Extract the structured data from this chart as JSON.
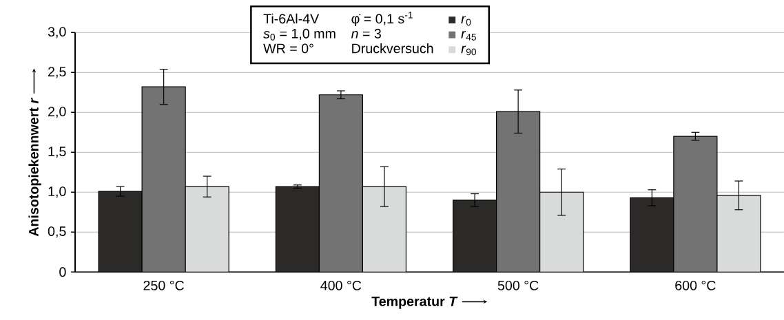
{
  "chart_data": {
    "type": "bar",
    "categories": [
      "250 °C",
      "400 °C",
      "500 °C",
      "600 °C"
    ],
    "xlabel": "Temperatur *T*",
    "ylabel": "Anisotopiekennwert *r*",
    "series": [
      {
        "name": "*r*$_{0}$",
        "color": "#2b2a28",
        "values": [
          1.01,
          1.07,
          0.9,
          0.93
        ],
        "errors": [
          0.06,
          0.02,
          0.08,
          0.1
        ]
      },
      {
        "name": "*r*$_{45}$",
        "color": "#737373",
        "values": [
          2.32,
          2.22,
          2.01,
          1.7
        ],
        "errors": [
          0.22,
          0.05,
          0.27,
          0.05
        ]
      },
      {
        "name": "*r*$_{90}$",
        "color": "#d9dbda",
        "values": [
          1.07,
          1.07,
          1.0,
          0.96
        ],
        "errors": [
          0.13,
          0.25,
          0.29,
          0.18
        ]
      }
    ],
    "annotations": [
      "Ti-6Al-4V",
      "*s*$_{0}$ = 1,0 mm",
      "WR = 0°",
      "φ̇ = 0,1 s$^{-1}$",
      "*n* = 3",
      "Druckversuch"
    ],
    "ylim": [
      0,
      3
    ],
    "yticks": [
      0,
      {
        "value": 0.5,
        "label": "0,5"
      },
      {
        "value": 1.0,
        "label": "1,0"
      },
      {
        "value": 1.5,
        "label": "1,5"
      },
      {
        "value": 2.0,
        "label": "2,0"
      },
      {
        "value": 2.5,
        "label": "2,5"
      },
      {
        "value": 3.0,
        "label": "3,0"
      }
    ],
    "grid": "y",
    "legend": "top"
  }
}
